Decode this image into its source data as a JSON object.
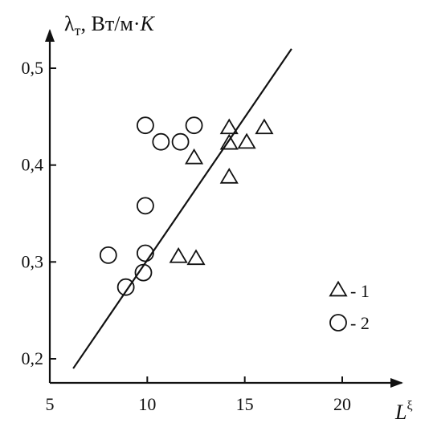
{
  "chart_data": {
    "type": "scatter",
    "title": "",
    "ylabel_symbol": "λ",
    "ylabel_subscript": "т",
    "ylabel_units": ", Вт/м·",
    "ylabel_k": "K",
    "xlabel_base": "L",
    "xlabel_sup": "ξ",
    "xlim": [
      5,
      23
    ],
    "ylim": [
      0.17,
      0.55
    ],
    "xticks": [
      5,
      10,
      15,
      20
    ],
    "xtick_labels": [
      "5",
      "10",
      "15",
      "20"
    ],
    "yticks": [
      0.2,
      0.3,
      0.4,
      0.5
    ],
    "ytick_labels": [
      "0,2",
      "0,3",
      "0,4",
      "0,5"
    ],
    "grid": false,
    "legend_position": "bottom-right",
    "series": [
      {
        "name": "1",
        "marker": "triangle",
        "points": [
          [
            11.6,
            0.305
          ],
          [
            12.5,
            0.303
          ],
          [
            12.4,
            0.407
          ],
          [
            14.2,
            0.387
          ],
          [
            14.2,
            0.422
          ],
          [
            14.2,
            0.438
          ],
          [
            15.1,
            0.423
          ],
          [
            16.0,
            0.438
          ]
        ]
      },
      {
        "name": "2",
        "marker": "circle",
        "points": [
          [
            8.0,
            0.307
          ],
          [
            8.9,
            0.274
          ],
          [
            9.8,
            0.289
          ],
          [
            9.9,
            0.309
          ],
          [
            9.9,
            0.358
          ],
          [
            9.9,
            0.441
          ],
          [
            10.7,
            0.424
          ],
          [
            11.7,
            0.424
          ],
          [
            12.4,
            0.441
          ]
        ]
      }
    ],
    "fit_line": {
      "x": [
        6.2,
        17.4
      ],
      "y": [
        0.19,
        0.52
      ]
    }
  }
}
